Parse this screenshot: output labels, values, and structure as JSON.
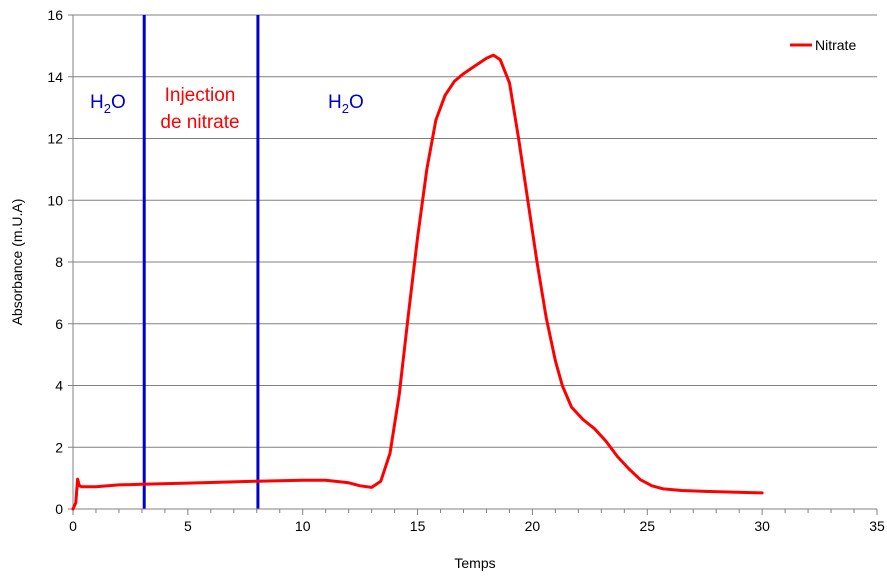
{
  "chart_data": {
    "type": "line",
    "title": "",
    "xlabel": "Temps",
    "ylabel": "Absorbance (m.U.A)",
    "xlim": [
      0,
      35
    ],
    "ylim": [
      0,
      16
    ],
    "xticks": [
      0,
      5,
      10,
      15,
      20,
      25,
      30,
      35
    ],
    "yticks": [
      0,
      2,
      4,
      6,
      8,
      10,
      12,
      14,
      16
    ],
    "grid": "horizontal",
    "legend_position": "top-right",
    "series": [
      {
        "name": "Nitrate",
        "color": "#ff0000",
        "x": [
          0,
          0.12,
          0.2,
          0.28,
          0.4,
          0.6,
          1,
          2,
          3,
          5,
          8,
          10,
          11,
          12,
          12.5,
          13,
          13.4,
          13.8,
          14.2,
          14.6,
          15,
          15.4,
          15.8,
          16.2,
          16.6,
          17,
          17.5,
          18,
          18.3,
          18.6,
          19,
          19.4,
          19.8,
          20.2,
          20.6,
          21,
          21.3,
          21.7,
          22.2,
          22.7,
          23.2,
          23.7,
          24.2,
          24.7,
          25.2,
          25.7,
          26.5,
          27.5,
          28.5,
          29.5,
          30
        ],
        "y": [
          0,
          0.2,
          0.97,
          0.75,
          0.72,
          0.72,
          0.72,
          0.78,
          0.8,
          0.84,
          0.9,
          0.93,
          0.93,
          0.85,
          0.75,
          0.7,
          0.9,
          1.8,
          3.7,
          6.3,
          8.8,
          11.0,
          12.6,
          13.4,
          13.85,
          14.1,
          14.35,
          14.6,
          14.7,
          14.55,
          13.8,
          12.0,
          10.0,
          8.0,
          6.2,
          4.8,
          4.0,
          3.3,
          2.9,
          2.6,
          2.2,
          1.7,
          1.3,
          0.95,
          0.75,
          0.65,
          0.6,
          0.57,
          0.55,
          0.53,
          0.52
        ]
      }
    ],
    "vertical_lines": [
      {
        "x": 3.1,
        "color": "#0000cc"
      },
      {
        "x": 8.05,
        "color": "#0000cc"
      }
    ]
  },
  "annotations": [
    {
      "id": "h2o-1",
      "text": "H2O",
      "color": "#0000cc"
    },
    {
      "id": "injection-1",
      "text": "Injection",
      "color": "#ff0000"
    },
    {
      "id": "injection-2",
      "text": "de nitrate",
      "color": "#ff0000"
    },
    {
      "id": "h2o-2",
      "text": "H2O",
      "color": "#0000cc"
    }
  ]
}
